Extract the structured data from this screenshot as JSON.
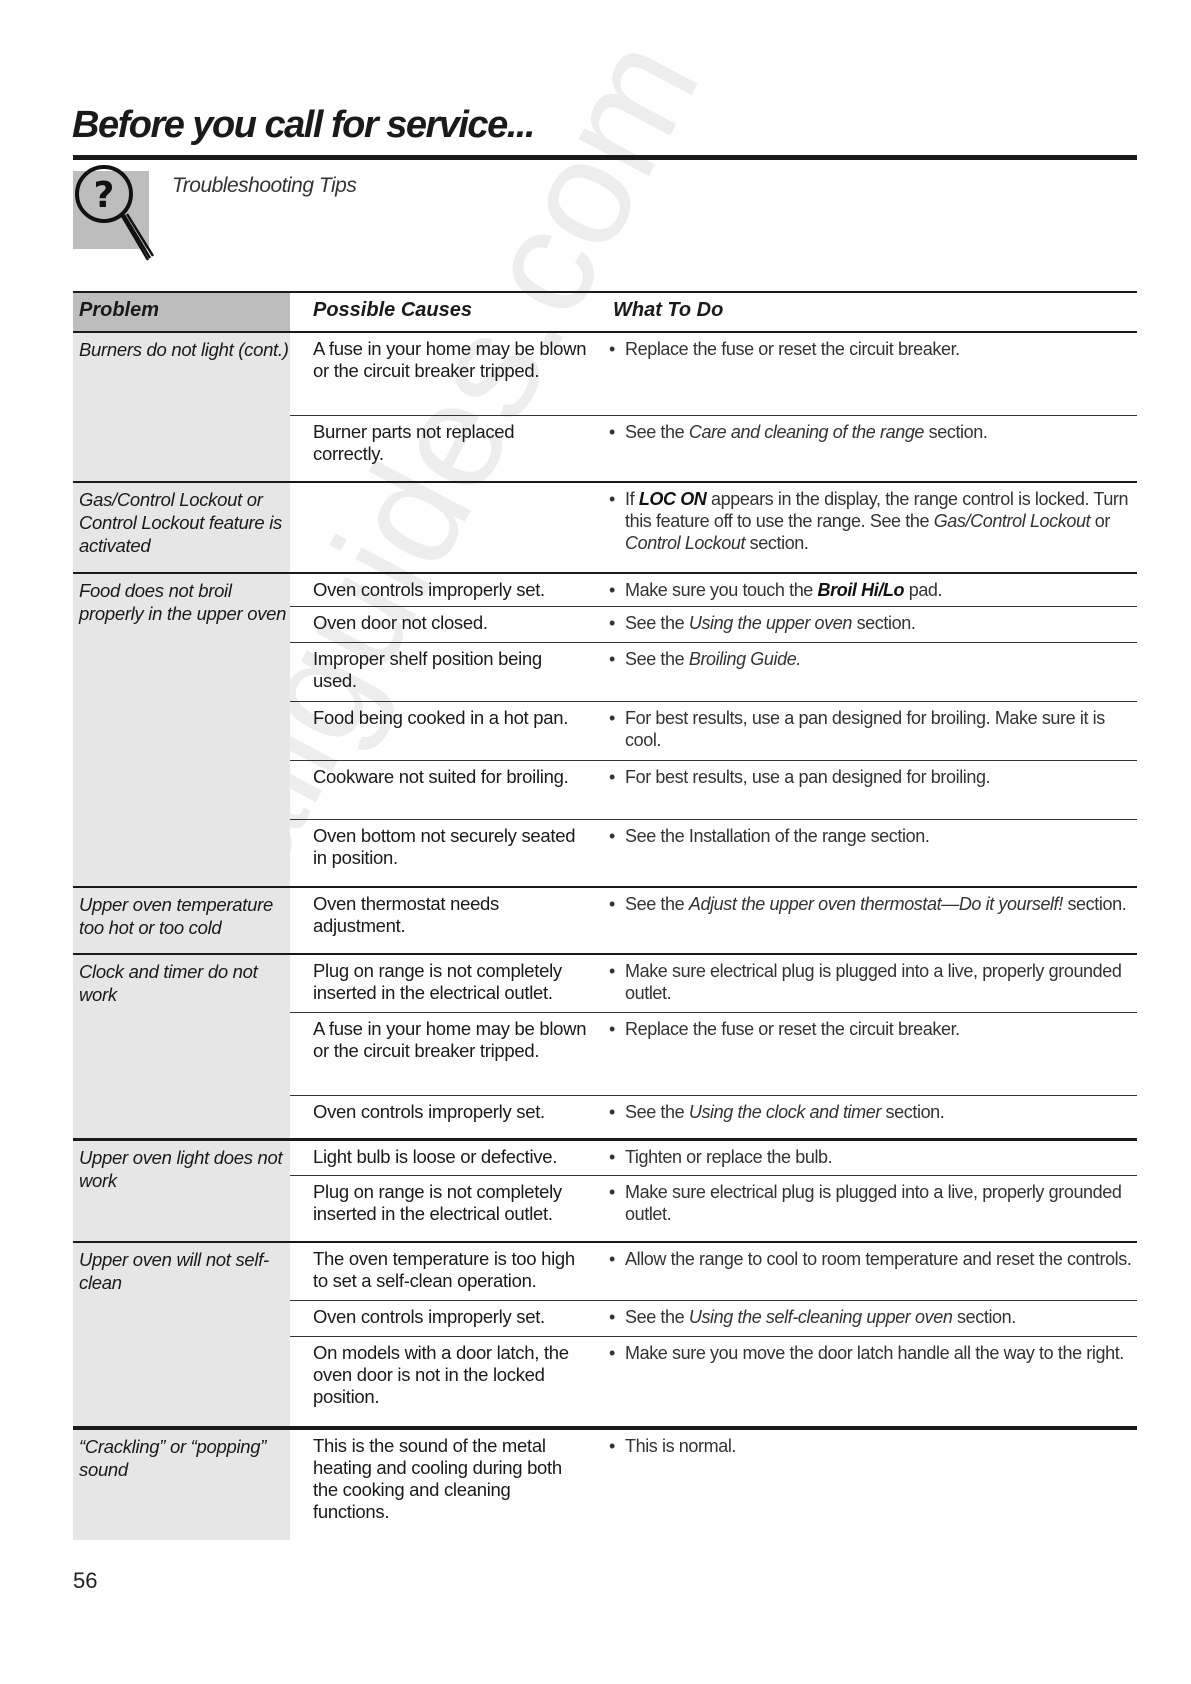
{
  "header": {
    "title": "Before you call for service...",
    "subtitle": "Troubleshooting Tips",
    "icon": "magnifier-question-icon"
  },
  "table": {
    "columns": [
      "Problem",
      "Possible Causes",
      "What To Do"
    ],
    "groups": [
      {
        "problem": "Burners do not light (cont.)",
        "rows": [
          {
            "cause": "A fuse in your home may be blown or the circuit breaker tripped.",
            "todo": [
              {
                "t": "Replace the fuse or reset the circuit breaker."
              }
            ]
          },
          {
            "cause": "Burner parts not replaced correctly.",
            "todo": [
              {
                "t": "See the "
              },
              {
                "t": "Care and cleaning of the range",
                "s": "i"
              },
              {
                "t": " section."
              }
            ]
          }
        ]
      },
      {
        "problem": "Gas/Control Lockout or Control Lockout feature is activated",
        "rows": [
          {
            "cause": "",
            "todo": [
              {
                "t": "If "
              },
              {
                "t": "LOC ON",
                "s": "b"
              },
              {
                "t": " appears in the display, the range control is locked. Turn this feature off to use the range. See the "
              },
              {
                "t": "Gas/Control Lockout",
                "s": "i"
              },
              {
                "t": " or "
              },
              {
                "t": "Control Lockout",
                "s": "i"
              },
              {
                "t": " section."
              }
            ]
          }
        ]
      },
      {
        "problem": "Food does not broil properly in the upper oven",
        "rows": [
          {
            "cause": "Oven controls improperly set.",
            "todo": [
              {
                "t": "Make sure you touch the "
              },
              {
                "t": "Broil Hi/Lo",
                "s": "b"
              },
              {
                "t": " pad."
              }
            ]
          },
          {
            "cause": "Oven door not closed.",
            "todo": [
              {
                "t": "See the "
              },
              {
                "t": "Using the upper oven",
                "s": "i"
              },
              {
                "t": " section."
              }
            ]
          },
          {
            "cause": "Improper shelf position being used.",
            "todo": [
              {
                "t": "See the "
              },
              {
                "t": "Broiling Guide.",
                "s": "i"
              }
            ]
          },
          {
            "cause": "Food being cooked in a hot pan.",
            "todo": [
              {
                "t": "For best results, use a pan designed for broiling. Make sure it is cool."
              }
            ]
          },
          {
            "cause": "Cookware not suited for broiling.",
            "todo": [
              {
                "t": "For best results, use a pan designed for broiling."
              }
            ]
          },
          {
            "cause": "Oven bottom not securely seated in position.",
            "todo": [
              {
                "t": "See the Installation of the range section."
              }
            ]
          }
        ]
      },
      {
        "problem": "Upper oven temperature too hot or too cold",
        "rows": [
          {
            "cause": "Oven thermostat needs adjustment.",
            "todo": [
              {
                "t": "See the "
              },
              {
                "t": "Adjust the upper oven thermostat—Do it yourself!",
                "s": "i"
              },
              {
                "t": " section."
              }
            ]
          }
        ]
      },
      {
        "problem": "Clock and timer do not work",
        "rows": [
          {
            "cause": "Plug on range is not completely inserted in the electrical outlet.",
            "todo": [
              {
                "t": "Make sure electrical plug is plugged into a live, properly grounded outlet."
              }
            ]
          },
          {
            "cause": "A fuse in your home may be blown or the circuit breaker tripped.",
            "todo": [
              {
                "t": "Replace the fuse or reset the circuit breaker."
              }
            ]
          },
          {
            "cause": "Oven controls improperly set.",
            "todo": [
              {
                "t": "See the "
              },
              {
                "t": "Using the clock and timer",
                "s": "i"
              },
              {
                "t": " section."
              }
            ]
          }
        ]
      },
      {
        "problem": "Upper oven light does not work",
        "rows": [
          {
            "cause": "Light bulb is loose or defective.",
            "todo": [
              {
                "t": "Tighten or replace the bulb."
              }
            ]
          },
          {
            "cause": "Plug on range is not completely inserted in the electrical outlet.",
            "todo": [
              {
                "t": "Make sure electrical plug is plugged into a live, properly grounded outlet."
              }
            ]
          }
        ]
      },
      {
        "problem": "Upper oven will not self-clean",
        "rows": [
          {
            "cause": "The oven temperature is too high to set a self-clean operation.",
            "todo": [
              {
                "t": "Allow the range to cool to room temperature and reset the controls."
              }
            ]
          },
          {
            "cause": "Oven controls improperly set.",
            "todo": [
              {
                "t": "See the "
              },
              {
                "t": "Using the self-cleaning upper oven",
                "s": "i"
              },
              {
                "t": " section."
              }
            ]
          },
          {
            "cause": "On models with a door latch, the oven door is not in the locked position.",
            "todo": [
              {
                "t": "Make sure you move the door latch handle all the way to the right."
              }
            ]
          }
        ]
      },
      {
        "problem": "“Crackling” or “popping” sound",
        "rows": [
          {
            "cause": "This is the sound of the metal heating and cooling during both the cooking and cleaning functions.",
            "todo": [
              {
                "t": "This is normal."
              }
            ]
          }
        ]
      }
    ]
  },
  "page_number": "56",
  "watermark": "allguides.com"
}
